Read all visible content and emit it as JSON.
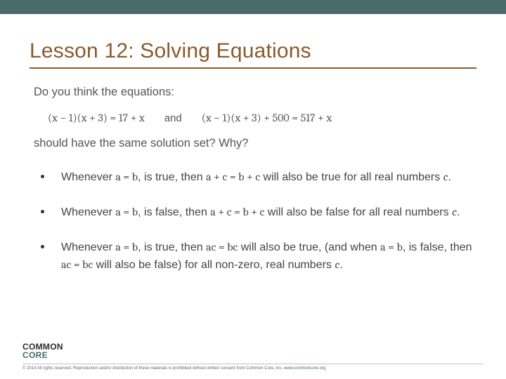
{
  "colors": {
    "band": "#4a6b6b",
    "title": "#8a5a2b",
    "body_text": "#555555",
    "bullet_text": "#444444",
    "bg": "#ffffff"
  },
  "title": "Lesson 12: Solving Equations",
  "prompt": {
    "intro": "Do you think the equations:",
    "eq1": "(x − 1)(x + 3) = 17 + x",
    "and": "and",
    "eq2": "(x − 1)(x + 3) + 500 = 517 + x",
    "question": "should have the same solution set?  Why?"
  },
  "bullets": [
    {
      "pre": "Whenever ",
      "m1": "a = b",
      "mid1": ", is true, then ",
      "m2": "a + c = b + c",
      "mid2": " will also be true for all real numbers ",
      "m3": "c",
      "post": "."
    },
    {
      "pre": "Whenever ",
      "m1": "a = b",
      "mid1": ", is false, then ",
      "m2": "a + c = b + c",
      "mid2": " will also be false for all real numbers ",
      "m3": "c",
      "post": "."
    },
    {
      "pre": "Whenever ",
      "m1": "a = b",
      "mid1": ", is true, then ",
      "m2": "ac = bc",
      "mid2": " will also be true, (and when ",
      "m3": "a = b",
      "mid3": ", is false, then ",
      "m4": "ac = bc",
      "mid4": " will also be false) for all non-zero, real numbers ",
      "m5": "c",
      "post": "."
    }
  ],
  "footer": {
    "logo_l1": "COMMON",
    "logo_l2": "CORE",
    "copyright": "© 2014  All rights reserved. Reproduction and/or distribution of these materials is prohibited without written consent from Common Core, Inc.  ",
    "url": "www.commoncore.org"
  }
}
